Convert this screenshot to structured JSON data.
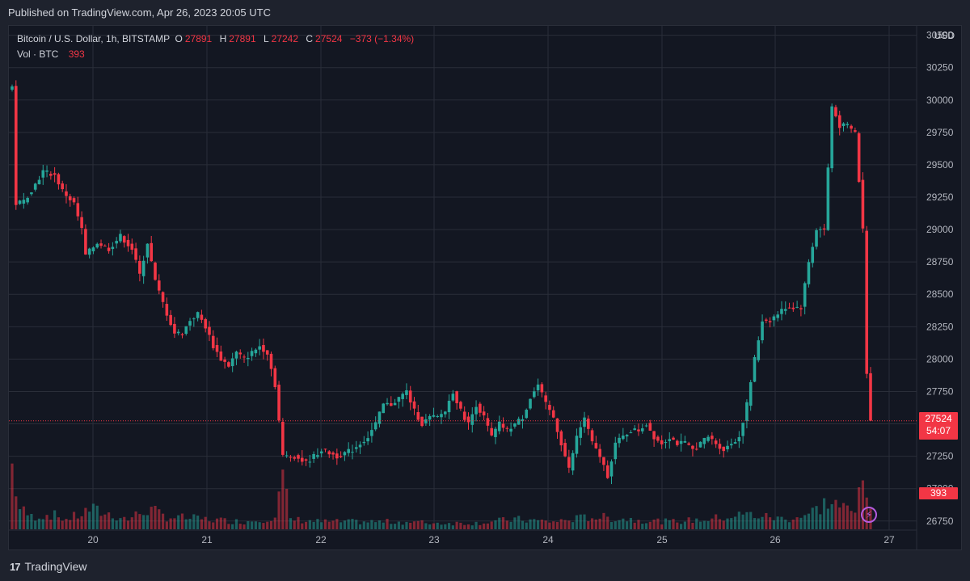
{
  "header": {
    "published": "Published on TradingView.com, Apr 26, 2023 20:05 UTC"
  },
  "legend": {
    "symbol": "Bitcoin / U.S. Dollar, 1h, BITSTAMP",
    "open_label": "O",
    "open": "27891",
    "high_label": "H",
    "high": "27891",
    "low_label": "L",
    "low": "27242",
    "close_label": "C",
    "close": "27524",
    "change": "−373 (−1.34%)",
    "vol_label": "Vol · BTC",
    "vol": "393"
  },
  "price_axis": {
    "currency": "USD",
    "last_price": "27524",
    "countdown": "54:07",
    "volume_tag": "393"
  },
  "footer": {
    "brand": "TradingView",
    "logo": "17"
  },
  "colors": {
    "up": "#26a69a",
    "down": "#f23645",
    "background": "#131722"
  },
  "chart_data": {
    "type": "candlestick",
    "interval": "1h",
    "x_ticks": [
      "20",
      "21",
      "22",
      "23",
      "24",
      "25",
      "26",
      "27"
    ],
    "y_ticks": [
      26750,
      27000,
      27250,
      27500,
      27750,
      28000,
      28250,
      28500,
      28750,
      29000,
      29250,
      29500,
      29750,
      30000,
      30250,
      30500
    ],
    "y_range": [
      26680,
      30560
    ],
    "waypoints_close": [
      [
        0,
        30100
      ],
      [
        1,
        29200
      ],
      [
        3,
        29220
      ],
      [
        6,
        29350
      ],
      [
        8,
        29450
      ],
      [
        11,
        29420
      ],
      [
        13,
        29300
      ],
      [
        16,
        29200
      ],
      [
        18,
        29000
      ],
      [
        19,
        28800
      ],
      [
        22,
        28900
      ],
      [
        25,
        28850
      ],
      [
        28,
        28950
      ],
      [
        31,
        28850
      ],
      [
        33,
        28650
      ],
      [
        35,
        28900
      ],
      [
        37,
        28600
      ],
      [
        40,
        28350
      ],
      [
        42,
        28200
      ],
      [
        44,
        28200
      ],
      [
        46,
        28300
      ],
      [
        48,
        28350
      ],
      [
        50,
        28250
      ],
      [
        52,
        28100
      ],
      [
        54,
        28000
      ],
      [
        56,
        27950
      ],
      [
        58,
        28050
      ],
      [
        60,
        28000
      ],
      [
        62,
        28050
      ],
      [
        64,
        28100
      ],
      [
        66,
        28050
      ],
      [
        68,
        27800
      ],
      [
        70,
        27250
      ],
      [
        73,
        27250
      ],
      [
        76,
        27200
      ],
      [
        80,
        27300
      ],
      [
        84,
        27250
      ],
      [
        88,
        27300
      ],
      [
        92,
        27400
      ],
      [
        94,
        27500
      ],
      [
        96,
        27650
      ],
      [
        98,
        27650
      ],
      [
        100,
        27700
      ],
      [
        102,
        27750
      ],
      [
        104,
        27600
      ],
      [
        106,
        27500
      ],
      [
        108,
        27550
      ],
      [
        110,
        27550
      ],
      [
        112,
        27600
      ],
      [
        114,
        27750
      ],
      [
        116,
        27600
      ],
      [
        118,
        27500
      ],
      [
        120,
        27650
      ],
      [
        122,
        27550
      ],
      [
        124,
        27400
      ],
      [
        126,
        27500
      ],
      [
        128,
        27450
      ],
      [
        130,
        27500
      ],
      [
        132,
        27550
      ],
      [
        134,
        27700
      ],
      [
        136,
        27800
      ],
      [
        138,
        27650
      ],
      [
        140,
        27550
      ],
      [
        142,
        27350
      ],
      [
        144,
        27150
      ],
      [
        146,
        27400
      ],
      [
        148,
        27550
      ],
      [
        150,
        27350
      ],
      [
        152,
        27250
      ],
      [
        154,
        27100
      ],
      [
        156,
        27350
      ],
      [
        158,
        27400
      ],
      [
        160,
        27450
      ],
      [
        162,
        27450
      ],
      [
        164,
        27500
      ],
      [
        166,
        27400
      ],
      [
        168,
        27350
      ],
      [
        170,
        27400
      ],
      [
        172,
        27350
      ],
      [
        174,
        27350
      ],
      [
        176,
        27300
      ],
      [
        178,
        27350
      ],
      [
        180,
        27400
      ],
      [
        182,
        27350
      ],
      [
        184,
        27300
      ],
      [
        186,
        27350
      ],
      [
        188,
        27400
      ],
      [
        190,
        27650
      ],
      [
        192,
        28000
      ],
      [
        194,
        28300
      ],
      [
        196,
        28300
      ],
      [
        198,
        28350
      ],
      [
        200,
        28400
      ],
      [
        202,
        28400
      ],
      [
        204,
        28400
      ],
      [
        206,
        28750
      ],
      [
        208,
        29000
      ],
      [
        210,
        29000
      ],
      [
        212,
        29950
      ],
      [
        214,
        29800
      ],
      [
        216,
        29800
      ],
      [
        218,
        29750
      ],
      [
        220,
        29000
      ],
      [
        221,
        27900
      ],
      [
        222,
        27524
      ]
    ],
    "volume_waypoints": [
      [
        0,
        250
      ],
      [
        2,
        80
      ],
      [
        5,
        50
      ],
      [
        10,
        60
      ],
      [
        14,
        40
      ],
      [
        18,
        60
      ],
      [
        20,
        80
      ],
      [
        30,
        40
      ],
      [
        35,
        80
      ],
      [
        40,
        50
      ],
      [
        50,
        40
      ],
      [
        60,
        30
      ],
      [
        68,
        50
      ],
      [
        70,
        200
      ],
      [
        72,
        40
      ],
      [
        80,
        30
      ],
      [
        100,
        30
      ],
      [
        110,
        25
      ],
      [
        120,
        25
      ],
      [
        130,
        40
      ],
      [
        140,
        30
      ],
      [
        150,
        50
      ],
      [
        160,
        40
      ],
      [
        170,
        30
      ],
      [
        180,
        40
      ],
      [
        190,
        60
      ],
      [
        200,
        40
      ],
      [
        206,
        60
      ],
      [
        210,
        100
      ],
      [
        212,
        110
      ],
      [
        218,
        60
      ],
      [
        220,
        290
      ],
      [
        221,
        160
      ],
      [
        222,
        60
      ]
    ]
  }
}
